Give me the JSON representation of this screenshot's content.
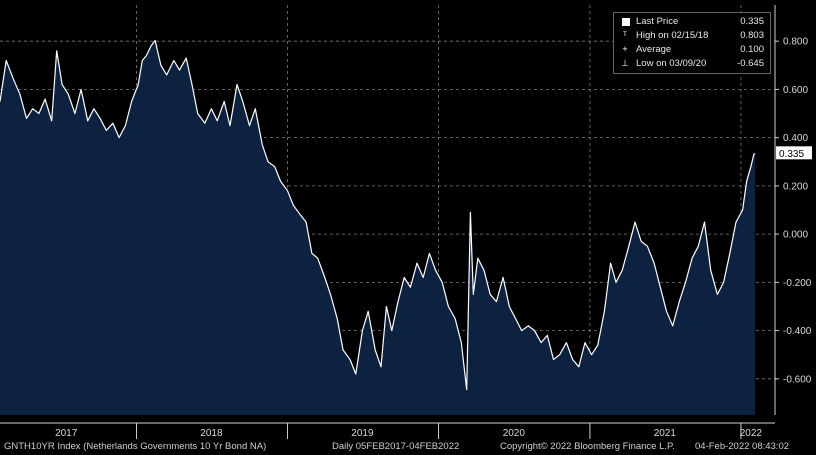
{
  "footer": {
    "ticker": "GNTH10YR Index (Netherlands Governments 10 Yr Bond NA)",
    "range": "Daily 05FEB2017-04FEB2022",
    "copyright": "Copyright© 2022 Bloomberg Finance L.P.",
    "timestamp": "04-Feb-2022 08:43:02"
  },
  "legend": {
    "items": [
      {
        "label": "Last Price",
        "value": "0.335",
        "icon": "square-icon"
      },
      {
        "label": "High on 02/15/18",
        "value": "0.803",
        "icon": "high-marker-icon"
      },
      {
        "label": "Average",
        "value": "0.100",
        "icon": "average-marker-icon"
      },
      {
        "label": "Low on 03/09/20",
        "value": "-0.645",
        "icon": "low-marker-icon"
      }
    ]
  },
  "colors": {
    "background": "#000000",
    "area_fill": "#0d2240",
    "line": "#ffffff",
    "grid": "#7a7a7a",
    "last_price_label_bg": "#ffffff"
  },
  "chart_data": {
    "type": "area",
    "x_axis": {
      "type": "date",
      "range": [
        "2017-02-05",
        "2022-02-04"
      ],
      "tick_labels": [
        "2017",
        "2018",
        "2019",
        "2020",
        "2021",
        "2022"
      ]
    },
    "y_axis": {
      "range": [
        -0.75,
        0.95
      ],
      "position": "right",
      "ticks": [
        0.8,
        0.6,
        0.4,
        0.2,
        0.0,
        -0.2,
        -0.4,
        -0.6
      ],
      "tick_labels": [
        "0.800",
        "0.600",
        "0.400",
        "0.200",
        "0.000",
        "-0.200",
        "-0.400",
        "-0.600"
      ]
    },
    "grid": true,
    "last_price_label": "0.335",
    "series": [
      {
        "name": "Last Price",
        "x": [
          "2017-02-05",
          "2017-02-20",
          "2017-03-10",
          "2017-03-25",
          "2017-04-10",
          "2017-04-25",
          "2017-05-10",
          "2017-05-25",
          "2017-06-10",
          "2017-06-22",
          "2017-07-05",
          "2017-07-20",
          "2017-08-05",
          "2017-08-20",
          "2017-09-05",
          "2017-09-20",
          "2017-10-05",
          "2017-10-20",
          "2017-11-05",
          "2017-11-20",
          "2017-12-05",
          "2017-12-20",
          "2018-01-05",
          "2018-01-15",
          "2018-01-25",
          "2018-02-05",
          "2018-02-15",
          "2018-03-01",
          "2018-03-15",
          "2018-04-01",
          "2018-04-15",
          "2018-05-01",
          "2018-05-15",
          "2018-05-29",
          "2018-06-15",
          "2018-07-01",
          "2018-07-15",
          "2018-08-01",
          "2018-08-15",
          "2018-09-01",
          "2018-09-15",
          "2018-10-01",
          "2018-10-15",
          "2018-11-01",
          "2018-11-15",
          "2018-12-01",
          "2018-12-15",
          "2019-01-01",
          "2019-01-15",
          "2019-02-01",
          "2019-02-15",
          "2019-03-01",
          "2019-03-15",
          "2019-04-01",
          "2019-04-15",
          "2019-05-01",
          "2019-05-15",
          "2019-06-01",
          "2019-06-15",
          "2019-07-01",
          "2019-07-15",
          "2019-08-01",
          "2019-08-15",
          "2019-08-28",
          "2019-09-10",
          "2019-09-25",
          "2019-10-10",
          "2019-10-25",
          "2019-11-10",
          "2019-11-25",
          "2019-12-10",
          "2019-12-25",
          "2020-01-10",
          "2020-01-25",
          "2020-02-10",
          "2020-02-25",
          "2020-03-09",
          "2020-03-18",
          "2020-03-25",
          "2020-04-05",
          "2020-04-20",
          "2020-05-05",
          "2020-05-20",
          "2020-06-05",
          "2020-06-20",
          "2020-07-05",
          "2020-07-20",
          "2020-08-05",
          "2020-08-20",
          "2020-09-05",
          "2020-09-20",
          "2020-10-05",
          "2020-10-20",
          "2020-11-05",
          "2020-11-20",
          "2020-12-05",
          "2020-12-20",
          "2021-01-05",
          "2021-01-20",
          "2021-02-05",
          "2021-02-20",
          "2021-03-05",
          "2021-03-20",
          "2021-04-05",
          "2021-04-20",
          "2021-05-05",
          "2021-05-20",
          "2021-06-05",
          "2021-06-20",
          "2021-07-05",
          "2021-07-20",
          "2021-08-05",
          "2021-08-20",
          "2021-09-05",
          "2021-09-20",
          "2021-10-05",
          "2021-10-20",
          "2021-11-05",
          "2021-11-20",
          "2021-12-05",
          "2021-12-20",
          "2022-01-05",
          "2022-01-15",
          "2022-01-25",
          "2022-02-01",
          "2022-02-04"
        ],
        "values": [
          0.55,
          0.72,
          0.64,
          0.58,
          0.48,
          0.52,
          0.5,
          0.56,
          0.47,
          0.76,
          0.62,
          0.58,
          0.5,
          0.6,
          0.47,
          0.52,
          0.48,
          0.43,
          0.46,
          0.4,
          0.45,
          0.55,
          0.62,
          0.72,
          0.74,
          0.78,
          0.803,
          0.7,
          0.66,
          0.72,
          0.68,
          0.73,
          0.62,
          0.5,
          0.46,
          0.52,
          0.47,
          0.55,
          0.45,
          0.62,
          0.55,
          0.45,
          0.52,
          0.37,
          0.3,
          0.28,
          0.22,
          0.18,
          0.12,
          0.08,
          0.05,
          -0.08,
          -0.1,
          -0.18,
          -0.25,
          -0.35,
          -0.48,
          -0.52,
          -0.58,
          -0.4,
          -0.32,
          -0.48,
          -0.55,
          -0.3,
          -0.4,
          -0.28,
          -0.18,
          -0.22,
          -0.12,
          -0.18,
          -0.08,
          -0.15,
          -0.2,
          -0.3,
          -0.35,
          -0.45,
          -0.645,
          0.09,
          -0.25,
          -0.1,
          -0.15,
          -0.25,
          -0.28,
          -0.18,
          -0.3,
          -0.35,
          -0.4,
          -0.38,
          -0.4,
          -0.45,
          -0.42,
          -0.52,
          -0.5,
          -0.45,
          -0.52,
          -0.55,
          -0.45,
          -0.5,
          -0.46,
          -0.32,
          -0.12,
          -0.2,
          -0.15,
          -0.05,
          0.05,
          -0.03,
          -0.05,
          -0.12,
          -0.22,
          -0.32,
          -0.38,
          -0.28,
          -0.2,
          -0.1,
          -0.05,
          0.05,
          -0.15,
          -0.25,
          -0.2,
          -0.08,
          0.05,
          0.1,
          0.22,
          0.28,
          0.33,
          0.335
        ]
      }
    ]
  }
}
